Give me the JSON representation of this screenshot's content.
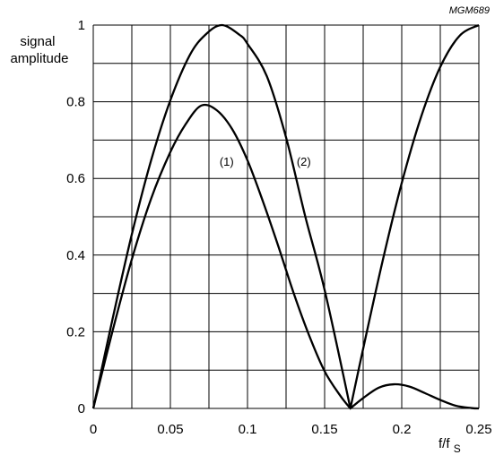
{
  "figure_id": "MGM689",
  "chart_data": {
    "type": "line",
    "title": "",
    "xlabel": "f/fs",
    "xlabel_main": "f/f",
    "xlabel_sub": "S",
    "ylabel_lines": [
      "signal",
      "amplitude"
    ],
    "xlim": [
      0,
      0.25
    ],
    "ylim": [
      0,
      1
    ],
    "xticks": [
      0,
      0.05,
      0.1,
      0.15,
      0.2,
      0.25
    ],
    "xtick_labels": [
      "0",
      "0.05",
      "0.1",
      "0.15",
      "0.2",
      "0.25"
    ],
    "yticks": [
      0,
      0.2,
      0.4,
      0.6,
      0.8,
      1
    ],
    "ytick_labels": [
      "0",
      "0.2",
      "0.4",
      "0.6",
      "0.8",
      "1"
    ],
    "grid": true,
    "grid_x_step": 0.025,
    "grid_y_step": 0.1,
    "series": [
      {
        "name": "(1)",
        "x": [
          0,
          0.0125,
          0.025,
          0.0375,
          0.05,
          0.06,
          0.07,
          0.08,
          0.09,
          0.1,
          0.11,
          0.12,
          0.13,
          0.14,
          0.15,
          0.16,
          0.1667,
          0.175,
          0.185,
          0.195,
          0.205,
          0.215,
          0.225,
          0.235,
          0.245,
          0.25
        ],
        "y": [
          0,
          0.202,
          0.389,
          0.547,
          0.669,
          0.742,
          0.79,
          0.778,
          0.729,
          0.647,
          0.54,
          0.423,
          0.3,
          0.19,
          0.097,
          0.034,
          0,
          0.027,
          0.054,
          0.063,
          0.057,
          0.04,
          0.022,
          0.007,
          0.001,
          0
        ]
      },
      {
        "name": "(2)",
        "x": [
          0,
          0.0125,
          0.025,
          0.0375,
          0.05,
          0.0625,
          0.0725,
          0.0833,
          0.095,
          0.1,
          0.1125,
          0.125,
          0.1375,
          0.15,
          0.1667,
          0.175,
          0.1875,
          0.2,
          0.2125,
          0.225,
          0.2375,
          0.25
        ],
        "y": [
          0,
          0.233,
          0.454,
          0.647,
          0.804,
          0.921,
          0.974,
          1,
          0.974,
          0.951,
          0.867,
          0.707,
          0.5,
          0.309,
          0,
          0.156,
          0.383,
          0.588,
          0.76,
          0.891,
          0.972,
          1
        ]
      }
    ],
    "annotations": [
      {
        "text": "(1)",
        "x": 0.0865,
        "y": 0.645
      },
      {
        "text": "(2)",
        "x": 0.1365,
        "y": 0.645
      }
    ]
  }
}
